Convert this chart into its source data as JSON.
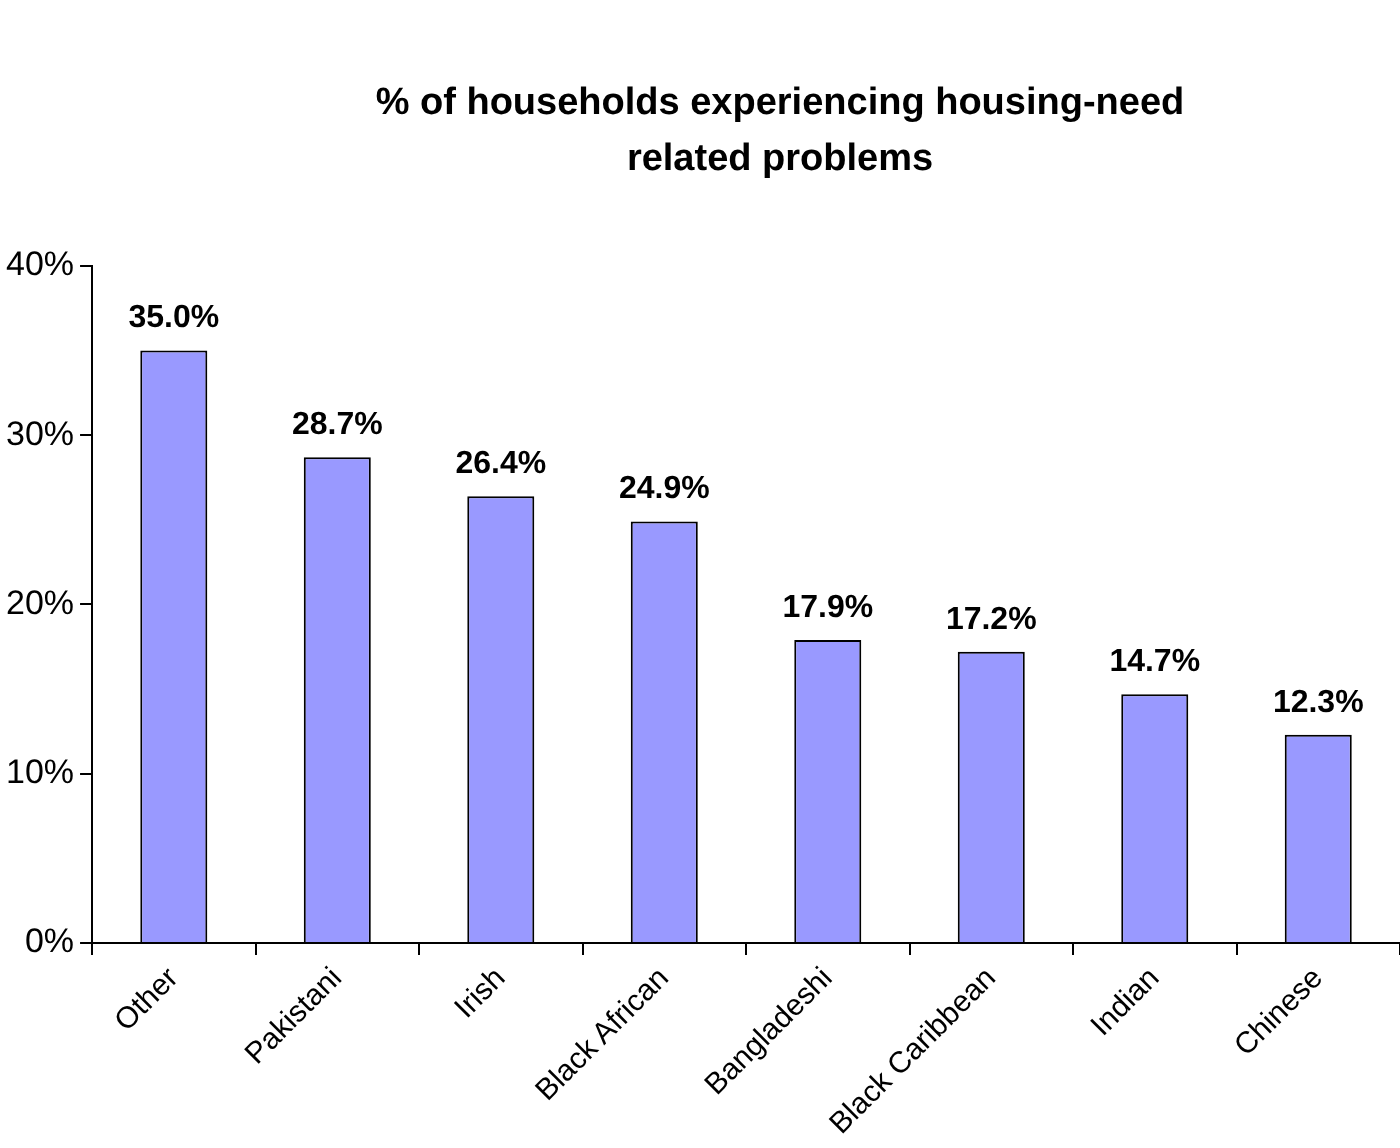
{
  "chart_data": {
    "type": "bar",
    "title": "% of households experiencing housing-need related problems",
    "categories": [
      "Other",
      "Pakistani",
      "Irish",
      "Black African",
      "Bangladeshi",
      "Black Caribbean",
      "Indian",
      "Chinese"
    ],
    "values": [
      35.0,
      28.7,
      26.4,
      24.9,
      17.9,
      17.2,
      14.7,
      12.3
    ],
    "value_labels": [
      "35.0%",
      "28.7%",
      "26.4%",
      "24.9%",
      "17.9%",
      "17.2%",
      "14.7%",
      "12.3%"
    ],
    "color": "#9999ff",
    "ylim": [
      0,
      40
    ],
    "yticks": [
      {
        "value": 0,
        "label": "0%"
      },
      {
        "value": 10,
        "label": "10%"
      },
      {
        "value": 20,
        "label": "20%"
      },
      {
        "value": 30,
        "label": "30%"
      },
      {
        "value": 40,
        "label": "40%"
      }
    ],
    "grid": false,
    "legend": false
  }
}
